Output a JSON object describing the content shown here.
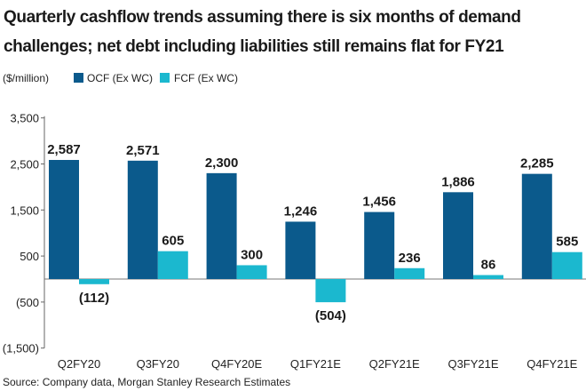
{
  "chart_data": {
    "type": "bar",
    "title": "Quarterly cashflow trends assuming there is six months of demand challenges; net debt including liabilities still remains flat for FY21",
    "title_lines": [
      "Quarterly cashflow trends assuming there is six months of demand",
      "challenges; net debt including liabilities still remains flat for FY21"
    ],
    "unit_label": "($/million)",
    "categories": [
      "Q2FY20",
      "Q3FY20",
      "Q4FY20E",
      "Q1FY21E",
      "Q2FY21E",
      "Q3FY21E",
      "Q4FY21E"
    ],
    "series": [
      {
        "name": "OCF (Ex WC)",
        "color": "#0b5a8c",
        "values": [
          2587,
          2571,
          2300,
          1246,
          1456,
          1886,
          2285
        ],
        "labels": [
          "2,587",
          "2,571",
          "2,300",
          "1,246",
          "1,456",
          "1,886",
          "2,285"
        ]
      },
      {
        "name": "FCF (Ex WC)",
        "color": "#1bb8cf",
        "values": [
          -112,
          605,
          300,
          -504,
          236,
          86,
          585
        ],
        "labels": [
          "(112)",
          "605",
          "300",
          "(504)",
          "236",
          "86",
          "585"
        ]
      }
    ],
    "yticks": [
      3500,
      2500,
      1500,
      500,
      -500,
      -1500
    ],
    "ytick_labels": [
      "3,500",
      "2,500",
      "1,500",
      "500",
      "(500",
      "(1,500)"
    ],
    "ylim": [
      -1500,
      3500
    ],
    "xlabel": "",
    "ylabel": "",
    "grid": false,
    "legend_position": "top-left",
    "source": "Source: Company data, Morgan Stanley Research Estimates"
  }
}
